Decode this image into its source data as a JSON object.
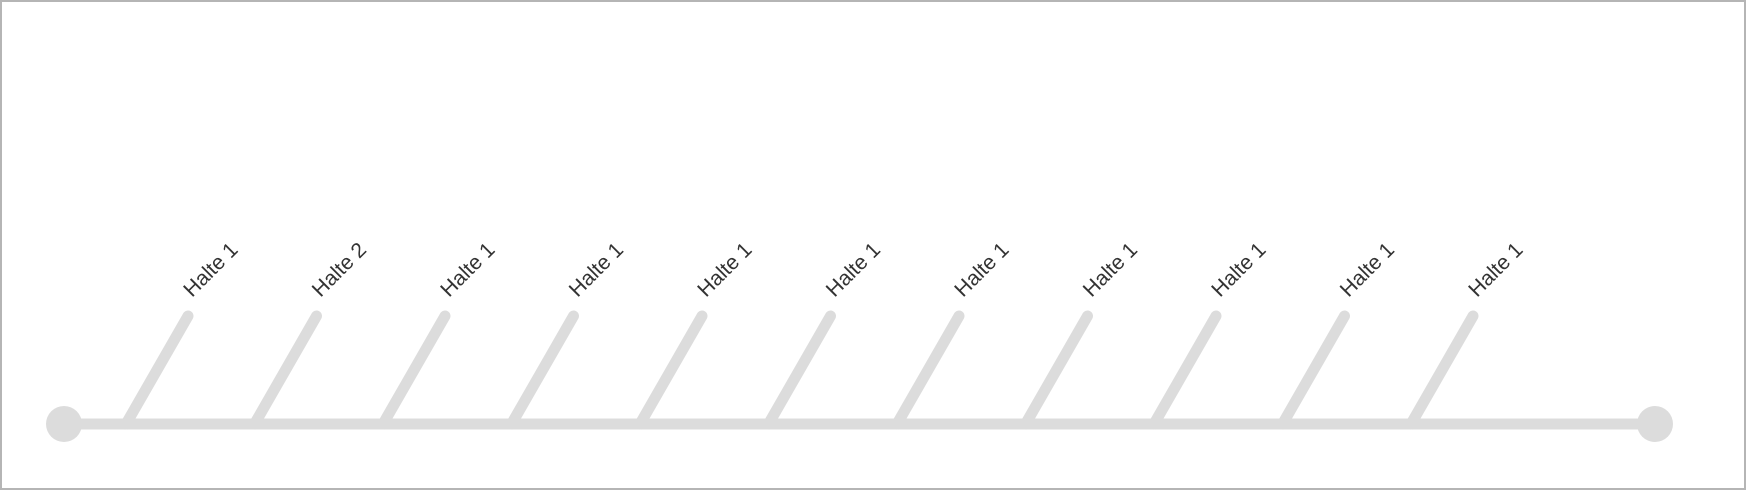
{
  "route": {
    "line_color": "#dcdcdc",
    "stops": [
      {
        "label": "Halte 1"
      },
      {
        "label": "Halte 2"
      },
      {
        "label": "Halte 1"
      },
      {
        "label": "Halte 1"
      },
      {
        "label": "Halte 1"
      },
      {
        "label": "Halte 1"
      },
      {
        "label": "Halte 1"
      },
      {
        "label": "Halte 1"
      },
      {
        "label": "Halte 1"
      },
      {
        "label": "Halte 1"
      },
      {
        "label": "Halte 1"
      }
    ]
  }
}
